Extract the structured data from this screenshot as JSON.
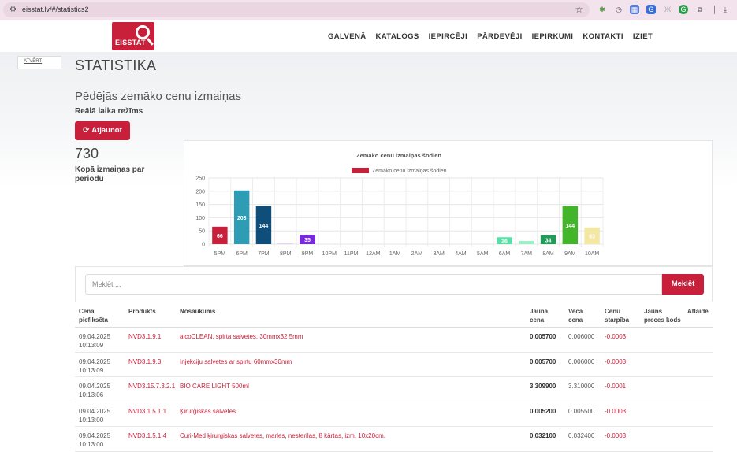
{
  "browser": {
    "url": "eisstat.lv/#/statistics2"
  },
  "header": {
    "logo_text": "EISSTAT",
    "nav": [
      "GALVENĀ",
      "KATALOGS",
      "IEPIRCĒJI",
      "PĀRDEVĒJI",
      "IEPIRKUMI",
      "KONTAKTI",
      "IZIET"
    ]
  },
  "sidebar": {
    "tab_label": "ATVĒRT"
  },
  "page": {
    "title": "STATISTIKA",
    "section_title": "Pēdējās zemāko cenu izmaiņas",
    "realtime_label": "Reālā laika režīms",
    "refresh_label": "Atjaunot",
    "total_value": "730",
    "total_label": "Kopā izmaiņas par periodu"
  },
  "chart_data": {
    "type": "bar",
    "title": "Zemāko cenu izmaiņas šodien",
    "legend": "Zemāko cenu izmaiņas šodien",
    "legend_position": "top",
    "grid": true,
    "ylim": [
      0,
      250
    ],
    "yticks": [
      0,
      50,
      100,
      150,
      200,
      250
    ],
    "categories": [
      "5PM",
      "6PM",
      "7PM",
      "8PM",
      "9PM",
      "10PM",
      "11PM",
      "12AM",
      "1AM",
      "2AM",
      "3AM",
      "4AM",
      "5AM",
      "6AM",
      "7AM",
      "8AM",
      "9AM",
      "10AM"
    ],
    "values": [
      66,
      203,
      144,
      3,
      35,
      0,
      0,
      0,
      0,
      0,
      0,
      0,
      0,
      26,
      12,
      34,
      144,
      63
    ],
    "data_labels": [
      "66",
      "203",
      "144",
      "",
      "35",
      "",
      "",
      "",
      "",
      "",
      "",
      "",
      "",
      "26",
      "",
      "34",
      "144",
      "63"
    ],
    "colors": [
      "#c8203a",
      "#2e9cb5",
      "#0f4d7a",
      "#e7d0f0",
      "#7a28e0",
      "#ccc",
      "#ccc",
      "#ccc",
      "#ccc",
      "#ccc",
      "#ccc",
      "#ccc",
      "#ccc",
      "#56e0a8",
      "#9ff0c6",
      "#1f9b5a",
      "#42b52a",
      "#f3e7a2"
    ]
  },
  "search": {
    "placeholder": "Meklēt ...",
    "button_label": "Meklēt"
  },
  "table": {
    "headers": {
      "date": "Cena piefiksēta",
      "product": "Produkts",
      "name": "Nosaukums",
      "new_price": "Jaunā cena",
      "old_price": "Vecā cena",
      "diff": "Cenu starpība",
      "new_code": "Jauns preces kods",
      "discount": "Atlaide"
    },
    "rows": [
      {
        "date": "09.04.2025",
        "time": "10:13:09",
        "product": "NVD3.1.9.1",
        "name": "alcoCLEAN, spirta salvetes, 30mmx32,5mm",
        "new_price": "0.005700",
        "old_price": "0.006000",
        "diff": "-0.0003"
      },
      {
        "date": "09.04.2025",
        "time": "10:13:09",
        "product": "NVD3.1.9.3",
        "name": "Injekciju salvetes ar spirtu 60mmx30mm",
        "new_price": "0.005700",
        "old_price": "0.006000",
        "diff": "-0.0003"
      },
      {
        "date": "09.04.2025",
        "time": "10:13:06",
        "product": "NVD3.15.7.3.2.1",
        "name": "BIO CARE LIGHT 500ml",
        "new_price": "3.309900",
        "old_price": "3.310000",
        "diff": "-0.0001"
      },
      {
        "date": "09.04.2025",
        "time": "10:13:00",
        "product": "NVD3.1.5.1.1",
        "name": "Ķirurģiskas salvetes",
        "new_price": "0.005200",
        "old_price": "0.005500",
        "diff": "-0.0003"
      },
      {
        "date": "09.04.2025",
        "time": "10:13:00",
        "product": "NVD3.1.5.1.4",
        "name": "Curi-Med ķirurģiskas salvetes, marles, nesterilas, 8 kārtas, izm. 10x20cm.",
        "new_price": "0.032100",
        "old_price": "0.032400",
        "diff": "-0.0003"
      }
    ]
  }
}
